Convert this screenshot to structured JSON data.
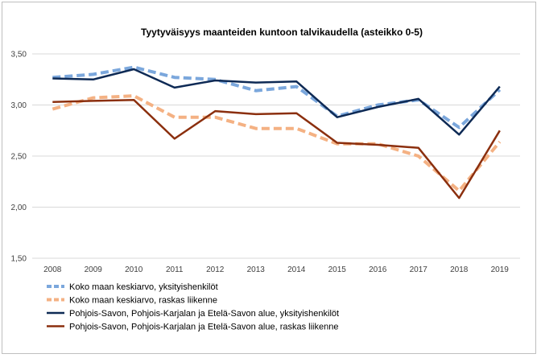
{
  "chart_data": {
    "type": "line",
    "title": "Tyytyväisyys maanteiden kuntoon talvikaudella (asteikko 0-5)",
    "xlabel": "",
    "ylabel": "",
    "x": [
      "2008",
      "2009",
      "2010",
      "2011",
      "2012",
      "2013",
      "2014",
      "2015",
      "2016",
      "2017",
      "2018",
      "2019"
    ],
    "ylim": [
      1.5,
      3.5
    ],
    "yticks": [
      1.5,
      2.0,
      2.5,
      3.0,
      3.5
    ],
    "ytick_labels": [
      "1,50",
      "2,00",
      "2,50",
      "3,00",
      "3,50"
    ],
    "grid": true,
    "legend_position": "bottom-left",
    "series": [
      {
        "name": "Koko maan keskiarvo, yksityishenkilöt",
        "color": "#7ba7dc",
        "style": "dashed",
        "values": [
          3.27,
          3.3,
          3.37,
          3.27,
          3.25,
          3.14,
          3.18,
          2.89,
          3.0,
          3.05,
          2.78,
          3.15
        ]
      },
      {
        "name": "Koko maan keskiarvo, raskas liikenne",
        "color": "#f4b183",
        "style": "dashed",
        "values": [
          2.96,
          3.07,
          3.09,
          2.88,
          2.88,
          2.77,
          2.77,
          2.62,
          2.62,
          2.5,
          2.16,
          2.64
        ]
      },
      {
        "name": "Pohjois-Savon, Pohjois-Karjalan ja Etelä-Savon alue, yksityishenkilöt",
        "color": "#0e2a55",
        "style": "solid",
        "values": [
          3.26,
          3.25,
          3.35,
          3.17,
          3.24,
          3.22,
          3.23,
          2.88,
          2.98,
          3.06,
          2.71,
          3.18
        ]
      },
      {
        "name": "Pohjois-Savon, Pohjois-Karjalan ja Etelä-Savon alue, raskas liikenne",
        "color": "#8b2f0e",
        "style": "solid",
        "values": [
          3.03,
          3.04,
          3.05,
          2.67,
          2.94,
          2.91,
          2.92,
          2.63,
          2.61,
          2.58,
          2.09,
          2.75
        ]
      }
    ]
  }
}
